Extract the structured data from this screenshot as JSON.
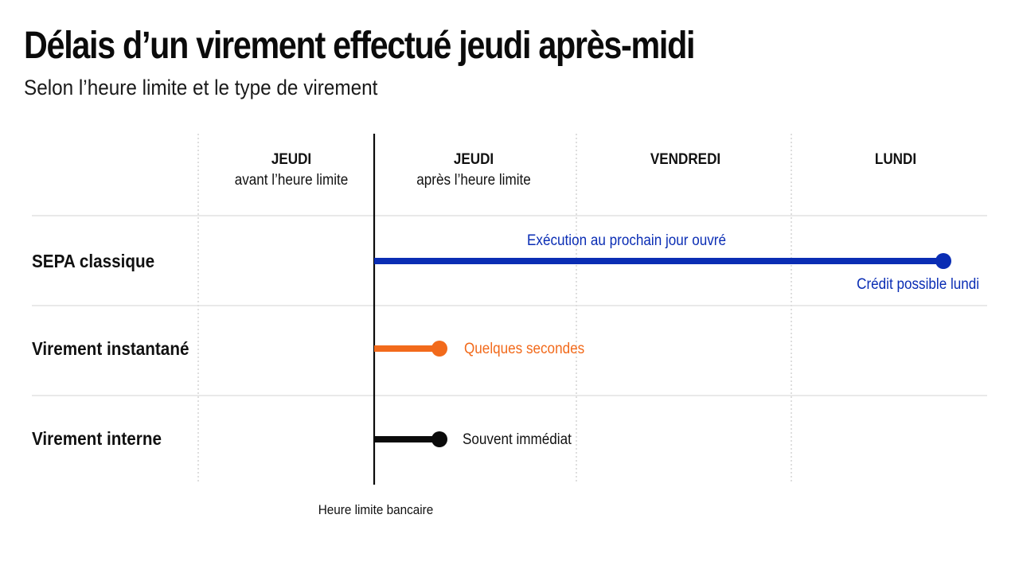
{
  "title": "Délais d’un virement effectué jeudi après-midi",
  "subtitle": "Selon l’heure limite et le type de virement",
  "columns": [
    {
      "day": "JEUDI",
      "sub": "avant l’heure limite"
    },
    {
      "day": "JEUDI",
      "sub": "après l’heure limite"
    },
    {
      "day": "VENDREDI",
      "sub": ""
    },
    {
      "day": "LUNDI",
      "sub": ""
    }
  ],
  "rows": [
    {
      "label": "SEPA classique",
      "top_note": "Exécution au prochain jour ouvré",
      "end_note": "Crédit possible lundi",
      "color": "#0a2db4"
    },
    {
      "label": "Virement instantané",
      "end_note": "Quelques secondes",
      "color": "#f26a1b"
    },
    {
      "label": "Virement interne",
      "end_note": "Souvent immédiat",
      "color": "#0b0b0b"
    }
  ],
  "cutoff_label": "Heure limite bancaire"
}
